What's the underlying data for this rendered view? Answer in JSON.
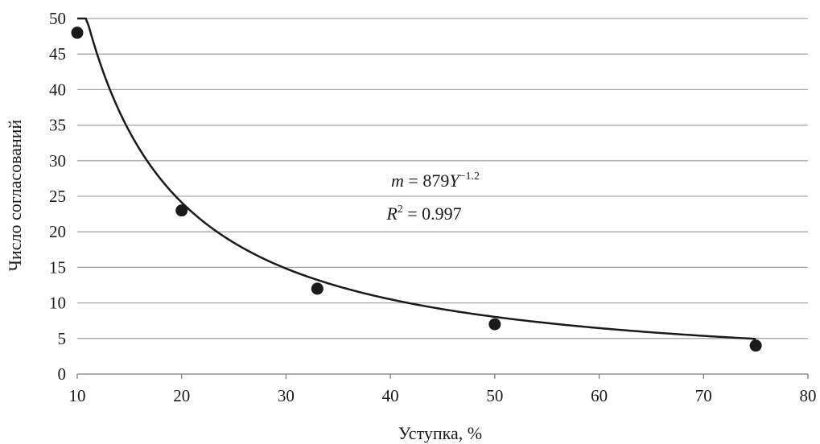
{
  "chart_data": {
    "type": "scatter",
    "xlabel": "Уступка, %",
    "ylabel": "Число согласований",
    "xlim": [
      10,
      80
    ],
    "ylim": [
      0,
      50
    ],
    "x_ticks": [
      10,
      20,
      30,
      40,
      50,
      60,
      70,
      80
    ],
    "y_ticks": [
      0,
      5,
      10,
      15,
      20,
      25,
      30,
      35,
      40,
      45,
      50
    ],
    "grid": "horizontal",
    "legend": "none",
    "series": [
      {
        "points": [
          {
            "x": 10,
            "y": 48
          },
          {
            "x": 20,
            "y": 23
          },
          {
            "x": 33,
            "y": 12
          },
          {
            "x": 50,
            "y": 7
          },
          {
            "x": 75,
            "y": 4
          }
        ]
      }
    ],
    "trendline": {
      "type": "power",
      "coefficient": 879,
      "exponent": -1.2,
      "x_range": [
        10,
        75
      ]
    },
    "annotations": {
      "equation": {
        "var": "m",
        "eq": " = 879",
        "base": "Y",
        "exp": "−1.2"
      },
      "r_squared": {
        "var": "R",
        "sup": "2",
        "eq": " = 0.997"
      }
    }
  }
}
